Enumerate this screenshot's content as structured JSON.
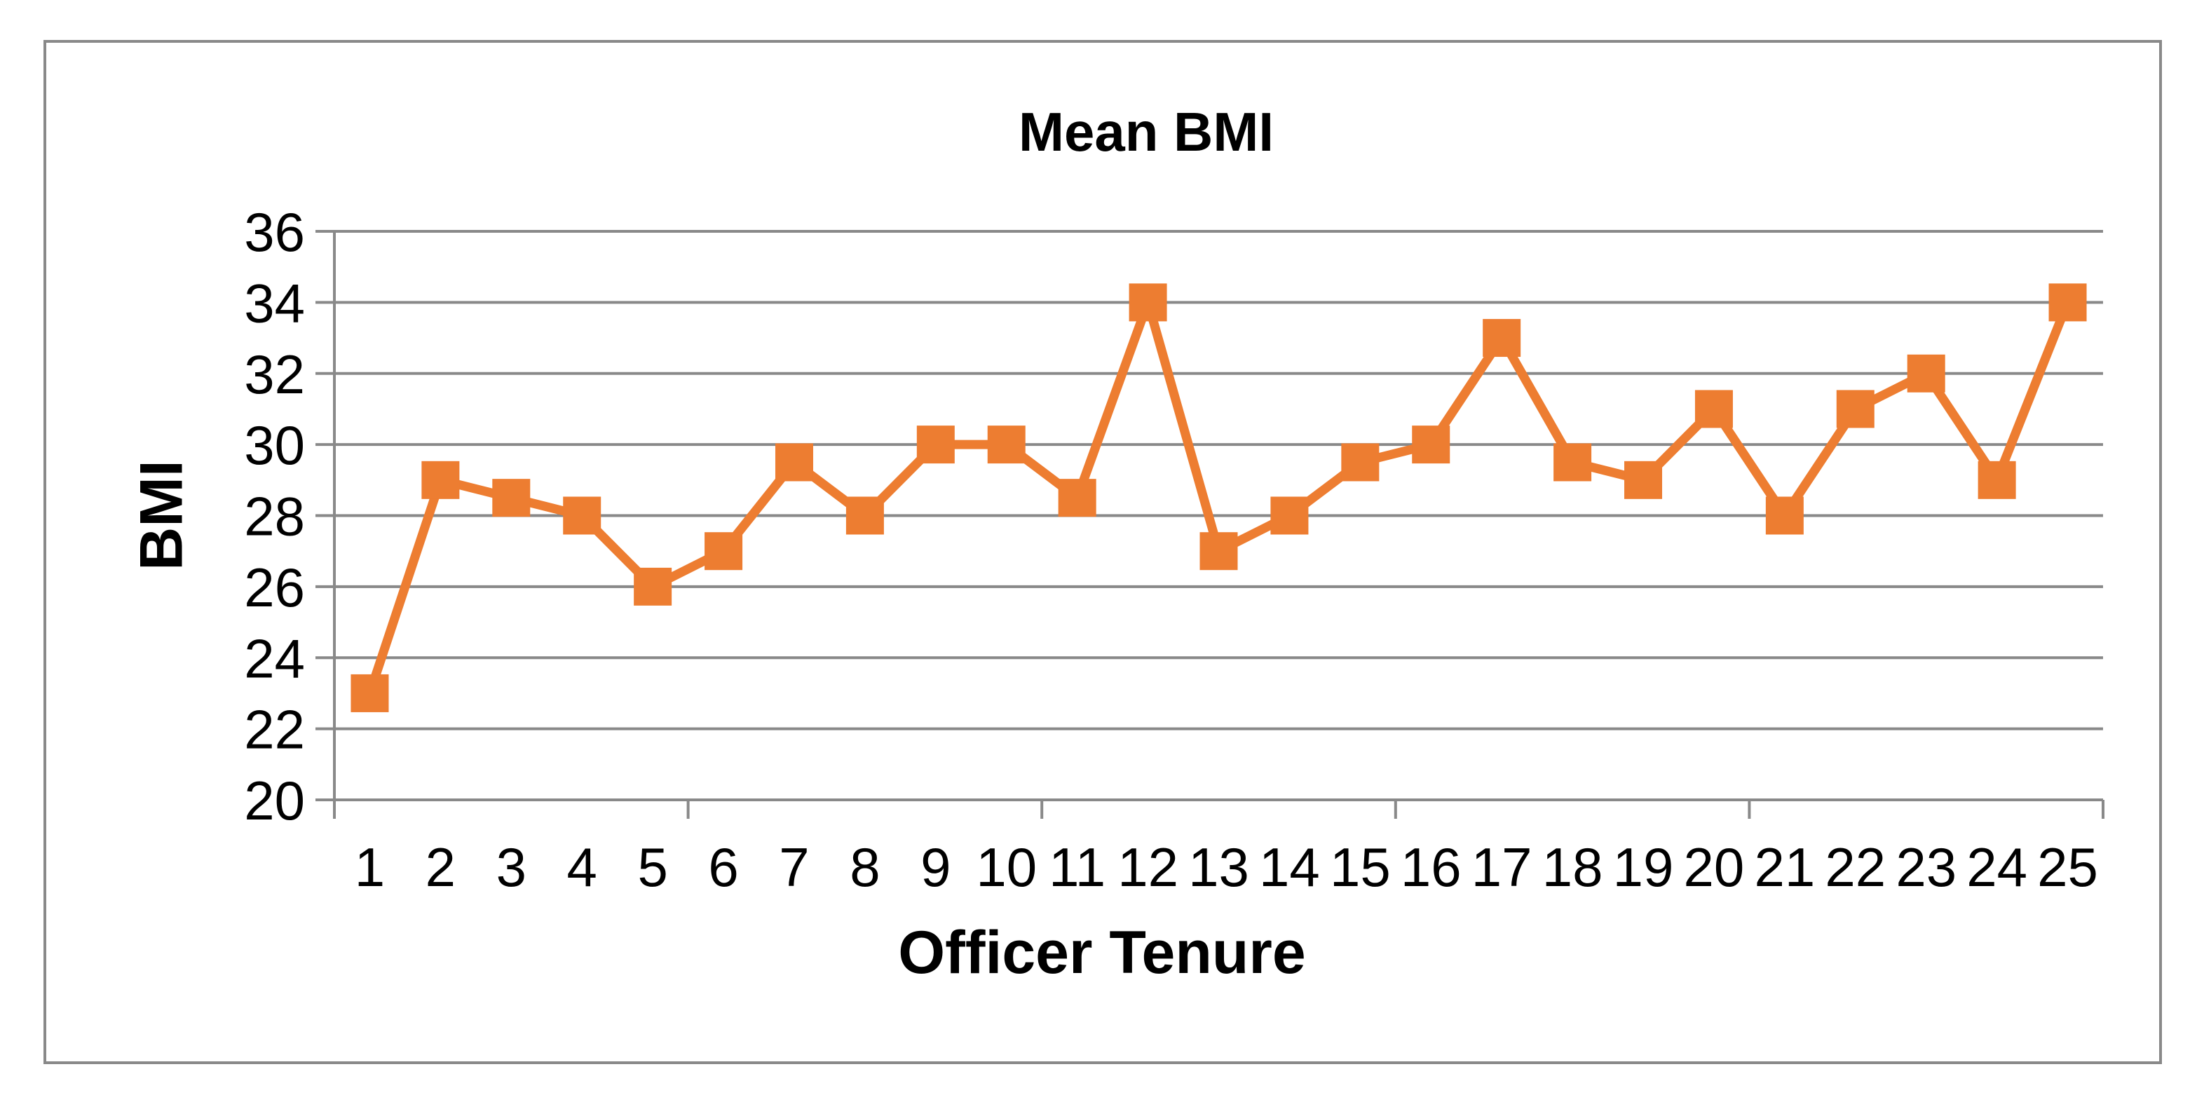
{
  "figure": {
    "background_color": "#FFFFFF",
    "border_color": "#898989"
  },
  "chart_data": {
    "type": "line",
    "title": "Mean BMI",
    "xlabel": "Officer Tenure",
    "ylabel": "BMI",
    "categories": [
      "1",
      "2",
      "3",
      "4",
      "5",
      "6",
      "7",
      "8",
      "9",
      "10",
      "11",
      "12",
      "13",
      "14",
      "15",
      "16",
      "17",
      "18",
      "19",
      "20",
      "21",
      "22",
      "23",
      "24",
      "25"
    ],
    "series": [
      {
        "name": "Mean BMI",
        "values": [
          23,
          29,
          28.5,
          28,
          26,
          27,
          29.5,
          28,
          30,
          30,
          28.5,
          34,
          27,
          28,
          29.5,
          30,
          33,
          29.5,
          29,
          31,
          28,
          31,
          32,
          29,
          34
        ],
        "color": "#ED7D31",
        "marker": "square"
      }
    ],
    "ylim": [
      20,
      36
    ],
    "y_tick_step": 2,
    "y_tick_labels": [
      "20",
      "22",
      "24",
      "26",
      "28",
      "30",
      "32",
      "34",
      "36"
    ],
    "x_major_tick_interval": 5,
    "grid": "horizontal-only",
    "gridline_color": "#898989",
    "axis_color": "#898989",
    "text_color": "#000000",
    "legend": "none"
  }
}
